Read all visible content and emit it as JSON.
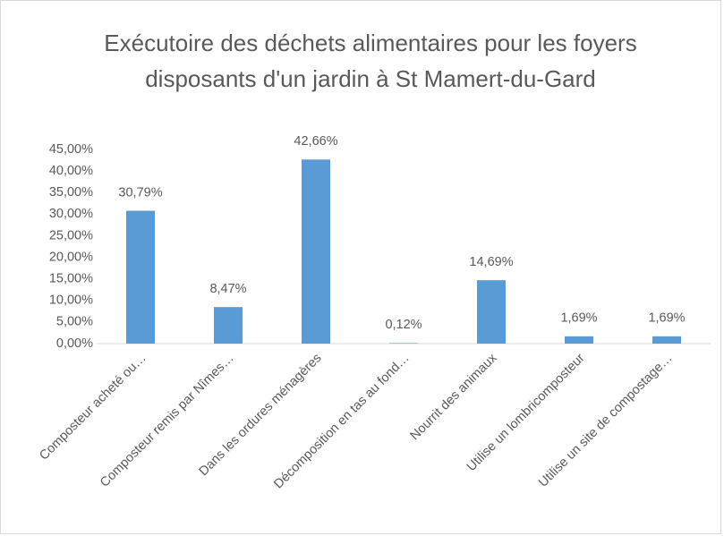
{
  "chart_data": {
    "type": "bar",
    "title": "Exécutoire des déchets alimentaires pour les foyers disposants d'un jardin à St Mamert-du-Gard",
    "categories": [
      "Composteur acheté ou…",
      "Composteur remis par Nîmes…",
      "Dans les ordures ménagères",
      "Décomposition en tas au fond…",
      "Nourrit des animaux",
      "Utilise un lombricomposteur",
      "Utilise un site de compostage…"
    ],
    "values": [
      30.79,
      8.47,
      42.66,
      0.12,
      14.69,
      1.69,
      1.69
    ],
    "value_labels": [
      "30,79%",
      "8,47%",
      "42,66%",
      "0,12%",
      "14,69%",
      "1,69%",
      "1,69%"
    ],
    "color": "#5b9bd5",
    "ylim": [
      0,
      45
    ],
    "yticks": [
      {
        "value": 0,
        "label": "0,00%"
      },
      {
        "value": 5,
        "label": "5,00%"
      },
      {
        "value": 10,
        "label": "10,00%"
      },
      {
        "value": 15,
        "label": "15,00%"
      },
      {
        "value": 20,
        "label": "20,00%"
      },
      {
        "value": 25,
        "label": "25,00%"
      },
      {
        "value": 30,
        "label": "30,00%"
      },
      {
        "value": 35,
        "label": "35,00%"
      },
      {
        "value": 40,
        "label": "40,00%"
      },
      {
        "value": 45,
        "label": "45,00%"
      }
    ],
    "grid": false
  }
}
